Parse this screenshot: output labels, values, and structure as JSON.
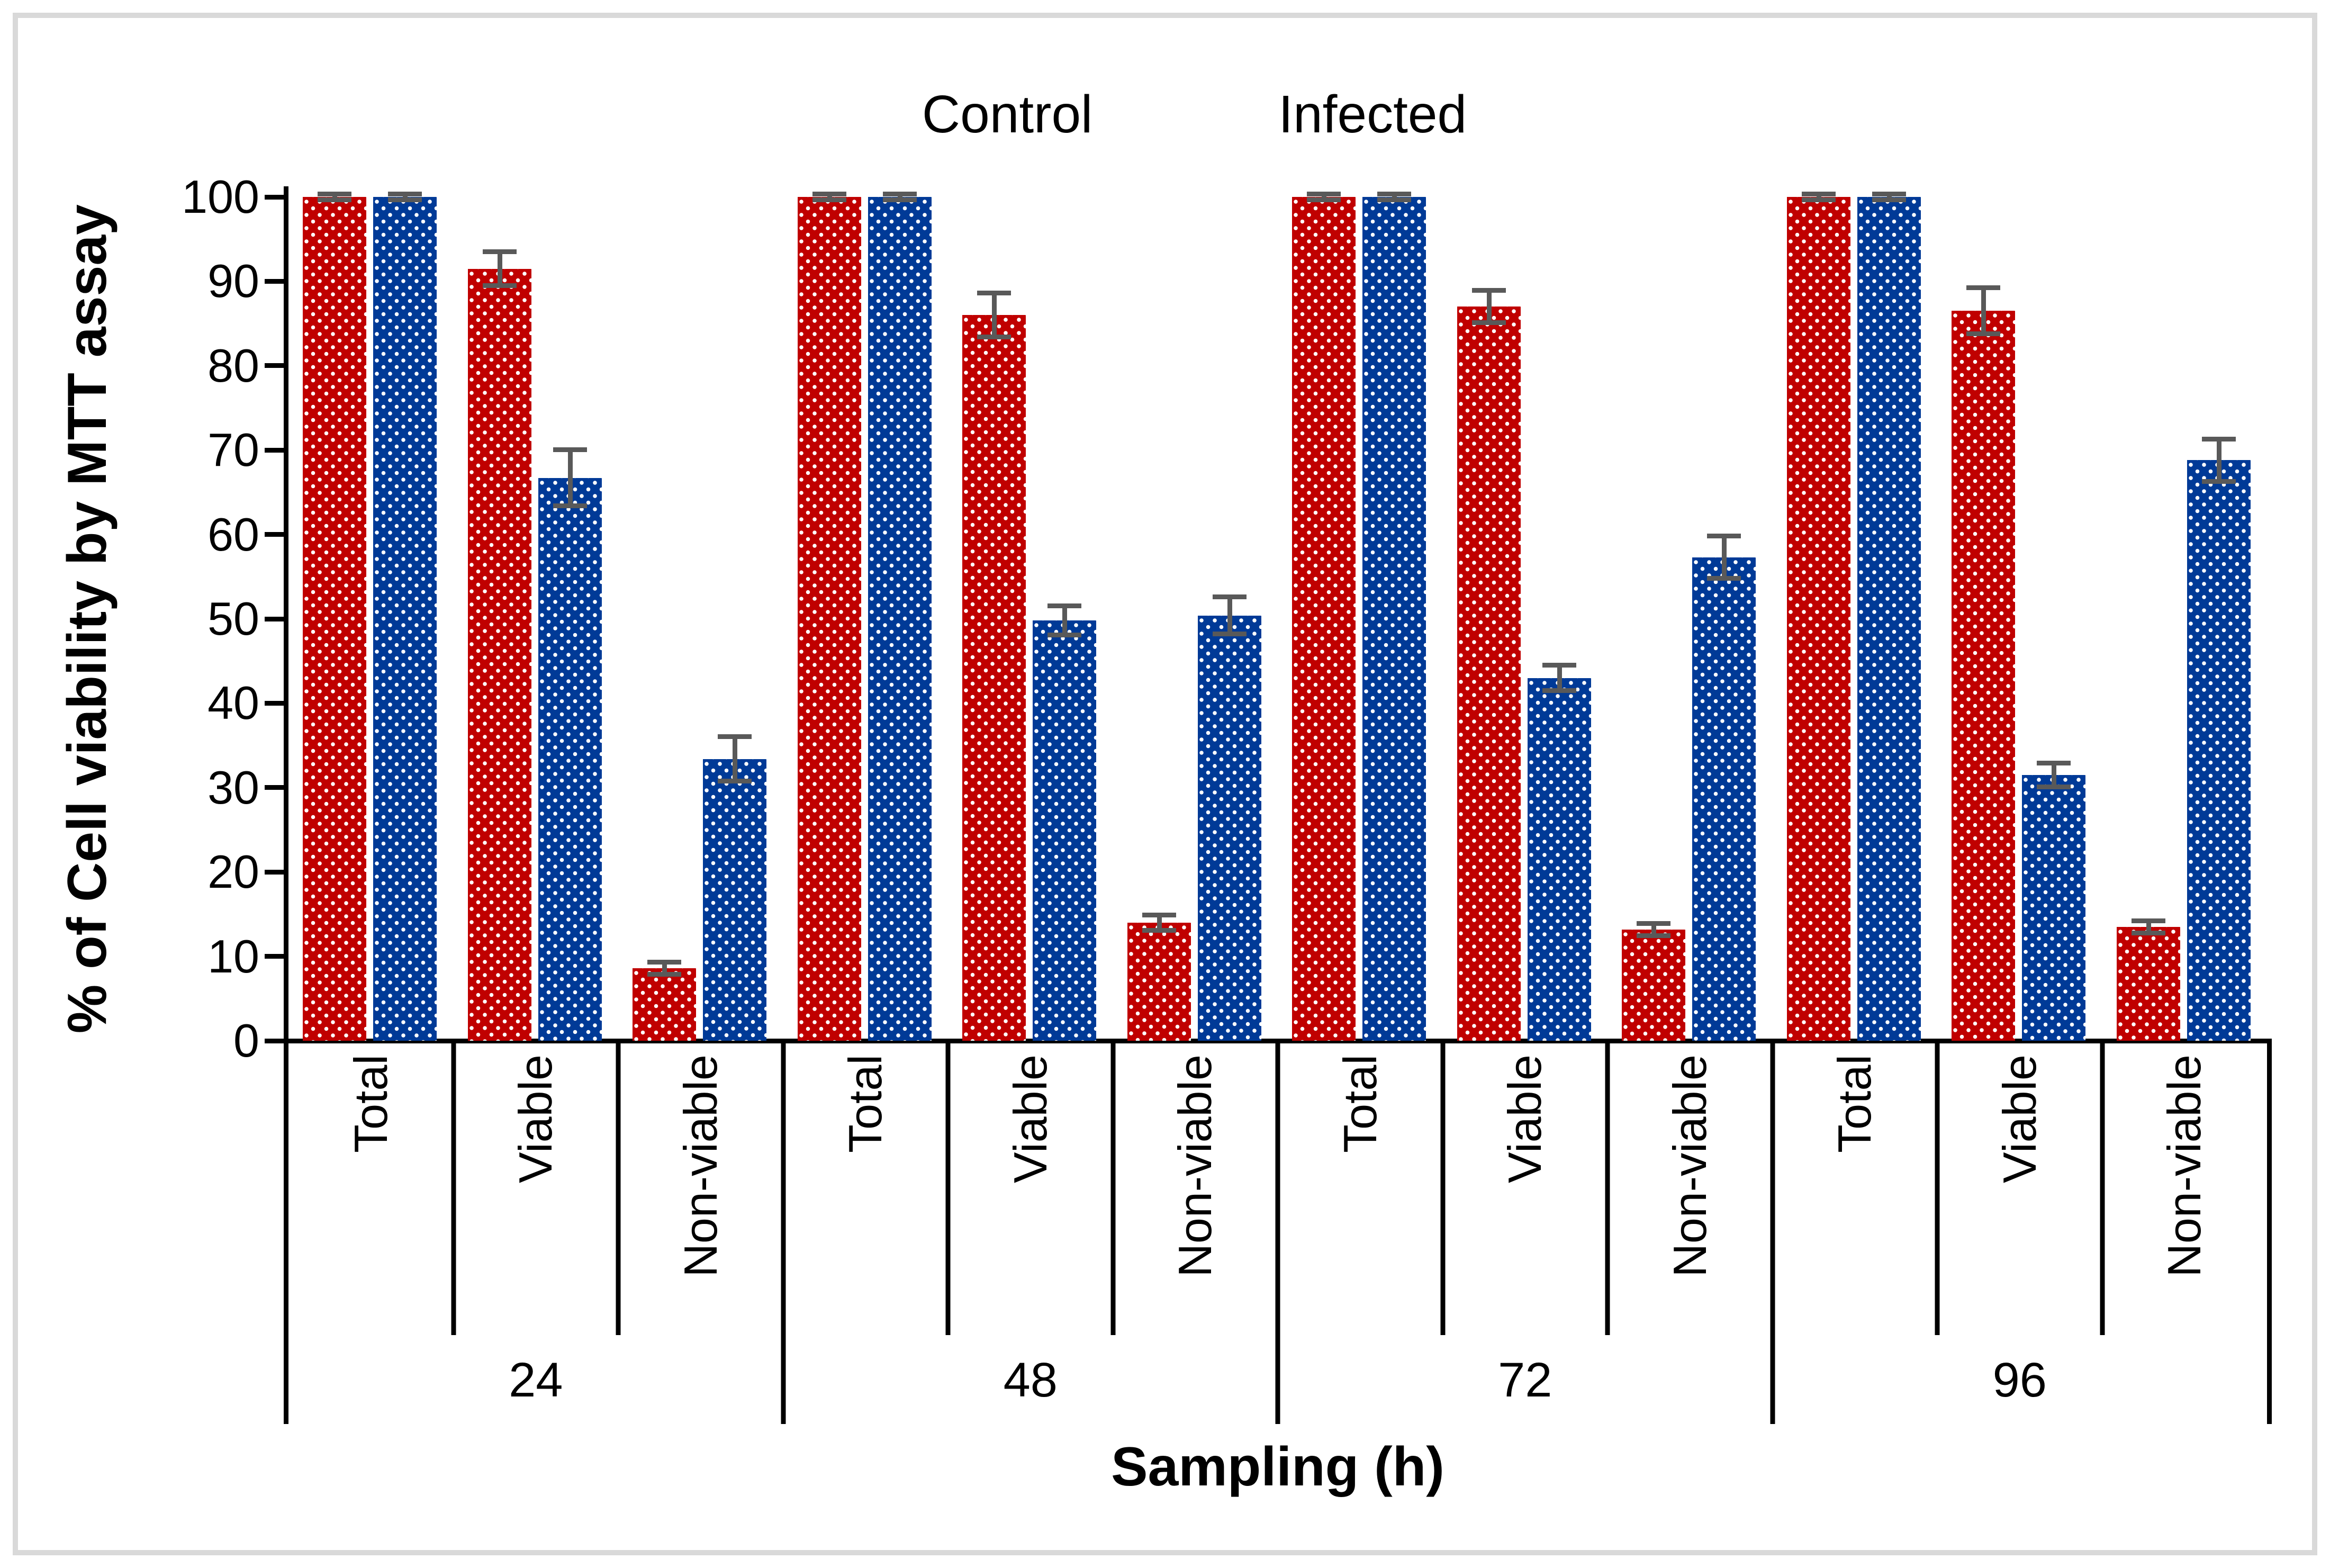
{
  "figure": {
    "background": "#ffffff",
    "border_color": "#d9d9d9",
    "axis_color": "#000000",
    "error_bar_color": "#595959"
  },
  "legend": {
    "position": "top-center",
    "items": [
      {
        "label": "Control",
        "color": "#c00000"
      },
      {
        "label": "Infected",
        "color": "#003a97"
      }
    ]
  },
  "axes": {
    "y_title": "% of Cell viability by MTT assay",
    "x_title": "Sampling (h)",
    "y_ticks": [
      0,
      10,
      20,
      30,
      40,
      50,
      60,
      70,
      80,
      90,
      100
    ]
  },
  "chart_data": {
    "type": "bar",
    "title": "",
    "xlabel": "Sampling (h)",
    "ylabel": "% of Cell viability by MTT assay",
    "ylim": [
      0,
      100
    ],
    "y_tick_step": 10,
    "grid": "off",
    "legend_position": "top",
    "pattern": "white-dots-on-solid-fill",
    "groups": [
      "24",
      "48",
      "72",
      "96"
    ],
    "categories": [
      "Total",
      "Viable",
      "Non-viable"
    ],
    "series": [
      {
        "name": "Control",
        "color": "#c00000",
        "values": [
          [
            100,
            91.5,
            8.6
          ],
          [
            100,
            86.0,
            14.0
          ],
          [
            100,
            87.0,
            13.2
          ],
          [
            100,
            86.5,
            13.5
          ]
        ],
        "errors": [
          [
            0.6,
            2.3,
            1.0
          ],
          [
            0.6,
            2.9,
            1.2
          ],
          [
            0.6,
            2.2,
            1.0
          ],
          [
            0.6,
            3.0,
            1.0
          ]
        ]
      },
      {
        "name": "Infected",
        "color": "#003a97",
        "values": [
          [
            100,
            66.7,
            33.4
          ],
          [
            100,
            49.8,
            50.4
          ],
          [
            100,
            43.0,
            57.3
          ],
          [
            100,
            31.5,
            68.8
          ]
        ],
        "errors": [
          [
            0.6,
            3.6,
            2.9
          ],
          [
            0.6,
            2.0,
            2.5
          ],
          [
            0.6,
            1.8,
            2.8
          ],
          [
            0.6,
            1.7,
            2.8
          ]
        ]
      }
    ]
  }
}
